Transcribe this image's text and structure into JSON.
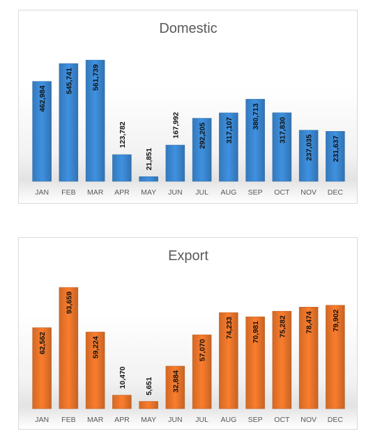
{
  "chart_data": [
    {
      "type": "bar",
      "title": "Domestic",
      "categories": [
        "JAN",
        "FEB",
        "MAR",
        "APR",
        "MAY",
        "JUN",
        "JUL",
        "AUG",
        "SEP",
        "OCT",
        "NOV",
        "DEC"
      ],
      "values": [
        462984,
        545741,
        561739,
        123782,
        21851,
        167992,
        292205,
        317107,
        380713,
        317830,
        237035,
        231637
      ],
      "value_labels": [
        "462,984",
        "545,741",
        "561,739",
        "123,782",
        "21,851",
        "167,992",
        "292,205",
        "317,107",
        "380,713",
        "317,830",
        "237,035",
        "231,637"
      ],
      "ylim": [
        0,
        630000
      ],
      "color": "#3a86d0",
      "grid": false,
      "legend": "none"
    },
    {
      "type": "bar",
      "title": "Export",
      "categories": [
        "JAN",
        "FEB",
        "MAR",
        "APR",
        "MAY",
        "JUN",
        "JUL",
        "AUG",
        "SEP",
        "OCT",
        "NOV",
        "DEC"
      ],
      "values": [
        62562,
        93659,
        59224,
        10470,
        5651,
        32884,
        57070,
        74233,
        70981,
        75282,
        78474,
        79902
      ],
      "value_labels": [
        "62,562",
        "93,659",
        "59,224",
        "10,470",
        "5,651",
        "32,884",
        "57,070",
        "74,233",
        "70,981",
        "75,282",
        "78,474",
        "79,902"
      ],
      "ylim": [
        0,
        105000
      ],
      "color": "#e8742a",
      "grid": false,
      "legend": "none"
    }
  ]
}
